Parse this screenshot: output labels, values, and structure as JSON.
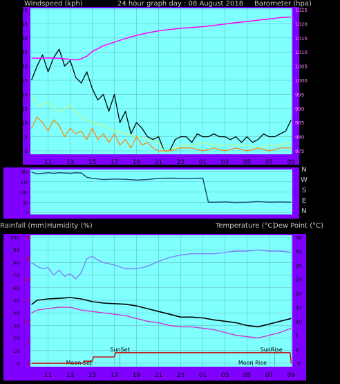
{
  "top": {
    "left_label": "Windspeed (kph)",
    "title": "24 hour graph day : 08 August 2018",
    "right_label": "Barometer (hpa)"
  },
  "wind_dir_labels": [
    "N",
    "W",
    "S",
    "E",
    "N"
  ],
  "bottom": {
    "left_label_1": "Rainfall (mm)",
    "left_label_2": "Humidity (%)",
    "right_label_1": "Temperature (°C)",
    "right_label_2": "Dew Point (°C)"
  },
  "annotations": {
    "sunset": "SunSet",
    "sunrise": "SunRise",
    "moonset": "Moon Set",
    "moonrise": "Moon Rise"
  },
  "colors": {
    "frame": "#8000ff",
    "plot_bg": "#80ffff",
    "grid": "#5fb3b3",
    "gust": "#000000",
    "wind_avg": "#bfff80",
    "wind_low": "#ff8000",
    "barometer": "#ff00ff",
    "wind_dir": "#1e4d73",
    "temperature": "#000000",
    "dew_point": "#cc33cc",
    "humidity": "#8080ff",
    "rainfall": "#cc0000"
  },
  "chart_data": [
    {
      "type": "line",
      "name": "wind-barometer",
      "x_ticks": [
        "11",
        "13",
        "15",
        "17",
        "19",
        "21",
        "23",
        "01",
        "03",
        "05",
        "07",
        "09"
      ],
      "xlim": [
        9.4,
        33.1
      ],
      "y_left": {
        "label": "Windspeed (kph)",
        "ylim": [
          0,
          50
        ],
        "ticks": [
          0,
          5,
          10,
          15,
          20,
          25,
          30,
          35,
          40,
          45,
          50
        ]
      },
      "y_right": {
        "label": "Barometer (hpa)",
        "ylim": [
          975,
          1025
        ],
        "ticks": [
          975,
          980,
          985,
          990,
          995,
          1000,
          1005,
          1010,
          1015,
          1020,
          1025
        ]
      },
      "series": [
        {
          "key": "gust",
          "axis": "left",
          "x": [
            9.5,
            10,
            10.5,
            11,
            11.5,
            12,
            12.5,
            13,
            13.5,
            14,
            14.5,
            15,
            15.5,
            16,
            16.5,
            17,
            17.5,
            18,
            18.5,
            19,
            19.5,
            20,
            20.5,
            21,
            21.5,
            22,
            22.5,
            23,
            23.5,
            24,
            24.5,
            25,
            25.5,
            26,
            26.5,
            27,
            27.5,
            28,
            28.5,
            29,
            29.5,
            30,
            30.5,
            31,
            31.5,
            32,
            32.5,
            33
          ],
          "y": [
            25,
            30,
            34,
            28,
            33,
            36,
            30,
            32,
            26,
            24,
            28,
            22,
            18,
            20,
            14,
            20,
            10,
            14,
            6,
            10,
            8,
            5,
            4,
            5,
            0,
            0,
            4,
            5,
            5,
            3,
            6,
            5,
            5,
            6,
            5,
            5,
            4,
            5,
            3,
            5,
            3,
            4,
            6,
            5,
            5,
            6,
            7,
            11
          ]
        },
        {
          "key": "wind_avg",
          "axis": "left",
          "x": [
            9.5,
            10,
            11,
            12,
            13,
            14,
            15,
            16,
            17,
            18,
            19,
            20,
            21,
            21.5,
            22,
            23,
            24,
            25,
            26,
            27,
            28,
            29,
            30,
            31,
            32,
            33
          ],
          "y": [
            20,
            16,
            17,
            14,
            16,
            12,
            10,
            9,
            7,
            6,
            5,
            4,
            3,
            0,
            0,
            2,
            2,
            3,
            2,
            2,
            2,
            2,
            1,
            2,
            2,
            3
          ]
        },
        {
          "key": "wind_low",
          "axis": "left",
          "x": [
            9.5,
            10,
            10.5,
            11,
            11.5,
            12,
            12.5,
            13,
            13.5,
            14,
            14.5,
            15,
            15.5,
            16,
            16.5,
            17,
            17.5,
            18,
            18.5,
            19,
            19.5,
            20,
            20.5,
            21,
            22,
            23,
            24,
            25,
            26,
            27,
            28,
            29,
            30,
            31,
            32,
            33
          ],
          "y": [
            8,
            12,
            10,
            7,
            11,
            9,
            5,
            8,
            6,
            7,
            4,
            8,
            4,
            6,
            3,
            6,
            2,
            4,
            1,
            5,
            2,
            3,
            1,
            0,
            0,
            1,
            1,
            0,
            1,
            0,
            1,
            0,
            1,
            0,
            1,
            1
          ]
        },
        {
          "key": "barometer",
          "axis": "right",
          "x": [
            9.5,
            10,
            11,
            12,
            13,
            13.5,
            14,
            14.5,
            15,
            16,
            17,
            18,
            19,
            20,
            21,
            22,
            23,
            24,
            25,
            26,
            27,
            28,
            29,
            30,
            31,
            32,
            33
          ],
          "y": [
            1007.9,
            1007.8,
            1007.9,
            1007.8,
            1007.4,
            1007.2,
            1007.6,
            1008.5,
            1010.2,
            1012.2,
            1013.5,
            1014.8,
            1015.9,
            1016.8,
            1017.5,
            1018.0,
            1018.4,
            1018.7,
            1019.0,
            1019.4,
            1019.9,
            1020.4,
            1020.8,
            1021.3,
            1021.7,
            1022.2,
            1022.4
          ]
        }
      ]
    },
    {
      "type": "line",
      "name": "wind-direction",
      "xlim": [
        9.4,
        33.1
      ],
      "ylim": [
        0,
        360
      ],
      "y_ticks": [
        0,
        90,
        180,
        270,
        360
      ],
      "x": [
        9.5,
        10,
        10.5,
        11,
        11.5,
        12,
        12.5,
        13,
        13.5,
        14,
        14.5,
        15,
        16,
        17,
        18,
        19,
        20,
        21,
        22,
        23,
        24,
        25,
        25.5,
        26,
        27,
        28,
        29,
        30,
        31,
        32,
        33
      ],
      "y": [
        355,
        340,
        345,
        350,
        345,
        350,
        348,
        345,
        350,
        348,
        310,
        300,
        290,
        295,
        292,
        285,
        290,
        300,
        302,
        300,
        300,
        302,
        90,
        90,
        92,
        88,
        90,
        95,
        90,
        92,
        90
      ]
    },
    {
      "type": "line",
      "name": "temp-humidity-rain",
      "x_ticks": [
        "11",
        "13",
        "15",
        "17",
        "19",
        "21",
        "23",
        "01",
        "03",
        "05",
        "07",
        "09"
      ],
      "xlim": [
        9.4,
        33.1
      ],
      "y_left": {
        "label": "Humidity (%)",
        "ylim": [
          0,
          100
        ],
        "ticks": [
          0,
          10,
          20,
          30,
          40,
          50,
          60,
          70,
          80,
          90,
          100
        ]
      },
      "y_left_inner": {
        "label": "Rainfall (mm)",
        "ylim": [
          0,
          30
        ],
        "ticks": [
          0,
          5,
          10,
          15,
          20,
          25,
          30
        ]
      },
      "y_right": {
        "label": "Temperature (°C)",
        "ylim": [
          -5,
          40
        ],
        "ticks": [
          -5,
          0,
          5,
          10,
          15,
          20,
          25,
          30,
          35,
          40
        ]
      },
      "series": [
        {
          "key": "temperature",
          "axis": "right",
          "x": [
            9.5,
            10,
            11,
            12,
            13,
            14,
            15,
            16,
            17,
            18,
            19,
            20,
            21,
            22,
            23,
            24,
            25,
            26,
            27,
            28,
            29,
            30,
            31,
            32,
            33
          ],
          "y": [
            16,
            17.5,
            18,
            18.2,
            18.5,
            18,
            17,
            16.5,
            16.3,
            16.1,
            15.5,
            14.5,
            13.5,
            12.5,
            11.5,
            11.5,
            11.2,
            10.5,
            10,
            9.5,
            8.5,
            8,
            9,
            10,
            11
          ]
        },
        {
          "key": "dew_point",
          "axis": "right",
          "x": [
            9.5,
            10,
            11,
            12,
            13,
            14,
            15,
            16,
            17,
            18,
            19,
            20,
            21,
            22,
            23,
            24,
            25,
            26,
            27,
            28,
            29,
            30,
            31,
            32,
            33
          ],
          "y": [
            13,
            14,
            14.5,
            15,
            15,
            14,
            13.5,
            13,
            12.5,
            12,
            11,
            10,
            9.5,
            8.5,
            8,
            8,
            7.5,
            7,
            6,
            5,
            4.5,
            4,
            5,
            6,
            7.5
          ]
        },
        {
          "key": "humidity",
          "axis": "left",
          "x": [
            9.5,
            10,
            10.5,
            11,
            11.5,
            12,
            12.5,
            13,
            13.5,
            14,
            14.5,
            15,
            15.5,
            16,
            17,
            18,
            19,
            20,
            21,
            22,
            23,
            24,
            25,
            26,
            27,
            28,
            29,
            30,
            31,
            32,
            33
          ],
          "y": [
            80,
            77,
            75,
            76,
            70,
            74,
            69,
            71,
            67,
            72,
            83,
            85,
            82,
            80,
            78,
            75,
            75,
            77,
            81,
            84,
            86,
            87,
            87,
            87,
            88,
            89,
            89,
            90,
            89,
            89,
            88
          ]
        },
        {
          "key": "rainfall",
          "axis": "left_inner",
          "x": [
            9.5,
            14.2,
            14.3,
            15,
            15.1,
            17,
            17.1,
            32.9,
            33
          ],
          "y": [
            0,
            0,
            0.5,
            0.5,
            1.5,
            1.5,
            2.5,
            2.5,
            0
          ]
        }
      ]
    }
  ]
}
